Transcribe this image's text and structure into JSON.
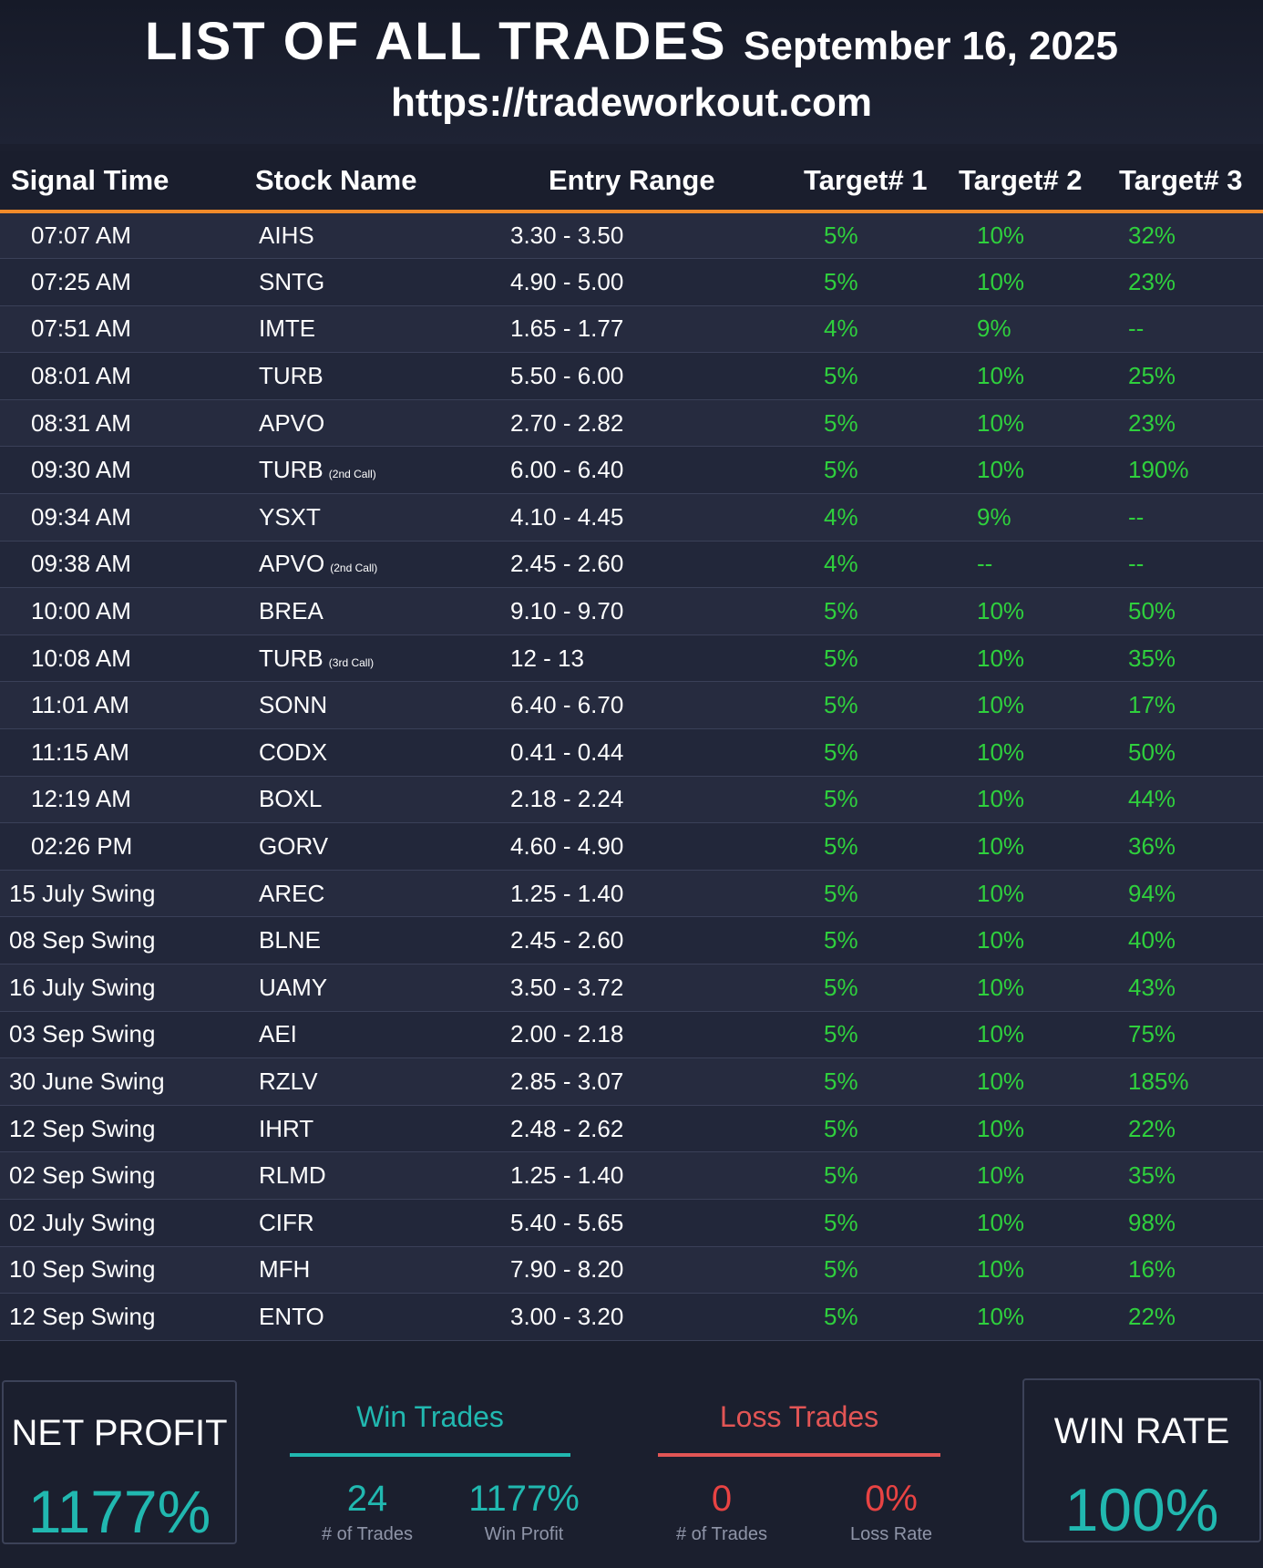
{
  "header": {
    "title": "LIST OF ALL TRADES",
    "date": "September 16, 2025",
    "url": "https://tradeworkout.com"
  },
  "table": {
    "columns": [
      "Signal Time",
      "Stock Name",
      "Entry Range",
      "Target# 1",
      "Target# 2",
      "Target# 3"
    ],
    "rows": [
      {
        "time": "07:07 AM",
        "stock": "AIHS",
        "note": "",
        "entry": "3.30 - 3.50",
        "t1": "5%",
        "t2": "10%",
        "t3": "32%"
      },
      {
        "time": "07:25 AM",
        "stock": "SNTG",
        "note": "",
        "entry": "4.90 - 5.00",
        "t1": "5%",
        "t2": "10%",
        "t3": "23%"
      },
      {
        "time": "07:51 AM",
        "stock": "IMTE",
        "note": "",
        "entry": "1.65 - 1.77",
        "t1": "4%",
        "t2": "9%",
        "t3": "--"
      },
      {
        "time": "08:01 AM",
        "stock": "TURB",
        "note": "",
        "entry": "5.50 - 6.00",
        "t1": "5%",
        "t2": "10%",
        "t3": "25%"
      },
      {
        "time": "08:31 AM",
        "stock": "APVO",
        "note": "",
        "entry": "2.70 - 2.82",
        "t1": "5%",
        "t2": "10%",
        "t3": "23%"
      },
      {
        "time": "09:30 AM",
        "stock": "TURB",
        "note": "(2nd Call)",
        "entry": "6.00 - 6.40",
        "t1": "5%",
        "t2": "10%",
        "t3": "190%"
      },
      {
        "time": "09:34 AM",
        "stock": "YSXT",
        "note": "",
        "entry": "4.10 - 4.45",
        "t1": "4%",
        "t2": "9%",
        "t3": "--"
      },
      {
        "time": "09:38 AM",
        "stock": "APVO",
        "note": "(2nd Call)",
        "entry": "2.45 - 2.60",
        "t1": "4%",
        "t2": "--",
        "t3": "--"
      },
      {
        "time": "10:00 AM",
        "stock": "BREA",
        "note": "",
        "entry": "9.10 - 9.70",
        "t1": "5%",
        "t2": "10%",
        "t3": "50%"
      },
      {
        "time": "10:08 AM",
        "stock": "TURB",
        "note": "(3rd Call)",
        "entry": "12 - 13",
        "t1": "5%",
        "t2": "10%",
        "t3": "35%"
      },
      {
        "time": "11:01 AM",
        "stock": "SONN",
        "note": "",
        "entry": "6.40 - 6.70",
        "t1": "5%",
        "t2": "10%",
        "t3": "17%"
      },
      {
        "time": "11:15 AM",
        "stock": "CODX",
        "note": "",
        "entry": "0.41 - 0.44",
        "t1": "5%",
        "t2": "10%",
        "t3": "50%"
      },
      {
        "time": "12:19 AM",
        "stock": "BOXL",
        "note": "",
        "entry": "2.18 - 2.24",
        "t1": "5%",
        "t2": "10%",
        "t3": "44%"
      },
      {
        "time": "02:26 PM",
        "stock": "GORV",
        "note": "",
        "entry": "4.60 - 4.90",
        "t1": "5%",
        "t2": "10%",
        "t3": "36%"
      },
      {
        "time": "15 July Swing",
        "stock": "AREC",
        "note": "",
        "entry": "1.25 - 1.40",
        "t1": "5%",
        "t2": "10%",
        "t3": "94%"
      },
      {
        "time": "08 Sep Swing",
        "stock": "BLNE",
        "note": "",
        "entry": "2.45 - 2.60",
        "t1": "5%",
        "t2": "10%",
        "t3": "40%"
      },
      {
        "time": "16 July Swing",
        "stock": "UAMY",
        "note": "",
        "entry": "3.50 - 3.72",
        "t1": "5%",
        "t2": "10%",
        "t3": "43%"
      },
      {
        "time": "03 Sep Swing",
        "stock": "AEI",
        "note": "",
        "entry": "2.00 - 2.18",
        "t1": "5%",
        "t2": "10%",
        "t3": "75%"
      },
      {
        "time": "30 June Swing",
        "stock": "RZLV",
        "note": "",
        "entry": "2.85 - 3.07",
        "t1": "5%",
        "t2": "10%",
        "t3": "185%"
      },
      {
        "time": "12 Sep Swing",
        "stock": "IHRT",
        "note": "",
        "entry": "2.48 - 2.62",
        "t1": "5%",
        "t2": "10%",
        "t3": "22%"
      },
      {
        "time": "02 Sep Swing",
        "stock": "RLMD",
        "note": "",
        "entry": "1.25 - 1.40",
        "t1": "5%",
        "t2": "10%",
        "t3": "35%"
      },
      {
        "time": "02 July Swing",
        "stock": "CIFR",
        "note": "",
        "entry": "5.40 - 5.65",
        "t1": "5%",
        "t2": "10%",
        "t3": "98%"
      },
      {
        "time": "10 Sep Swing",
        "stock": "MFH",
        "note": "",
        "entry": "7.90 - 8.20",
        "t1": "5%",
        "t2": "10%",
        "t3": "16%"
      },
      {
        "time": "12 Sep Swing",
        "stock": "ENTO",
        "note": "",
        "entry": "3.00 - 3.20",
        "t1": "5%",
        "t2": "10%",
        "t3": "22%"
      }
    ]
  },
  "summary": {
    "net_profit": {
      "label": "NET PROFIT",
      "value": "1177%"
    },
    "win_trades": {
      "title": "Win Trades",
      "count": "24",
      "count_label": "# of Trades",
      "profit": "1177%",
      "profit_label": "Win Profit"
    },
    "loss_trades": {
      "title": "Loss Trades",
      "count": "0",
      "count_label": "# of Trades",
      "rate": "0%",
      "rate_label": "Loss Rate"
    },
    "win_rate": {
      "label": "WIN RATE",
      "value": "100%"
    }
  },
  "colors": {
    "background": "#1b1f2e",
    "accent_orange": "#f08a2a",
    "profit_green": "#2fd03d",
    "teal": "#21b8b0",
    "loss_red": "#e25555"
  }
}
